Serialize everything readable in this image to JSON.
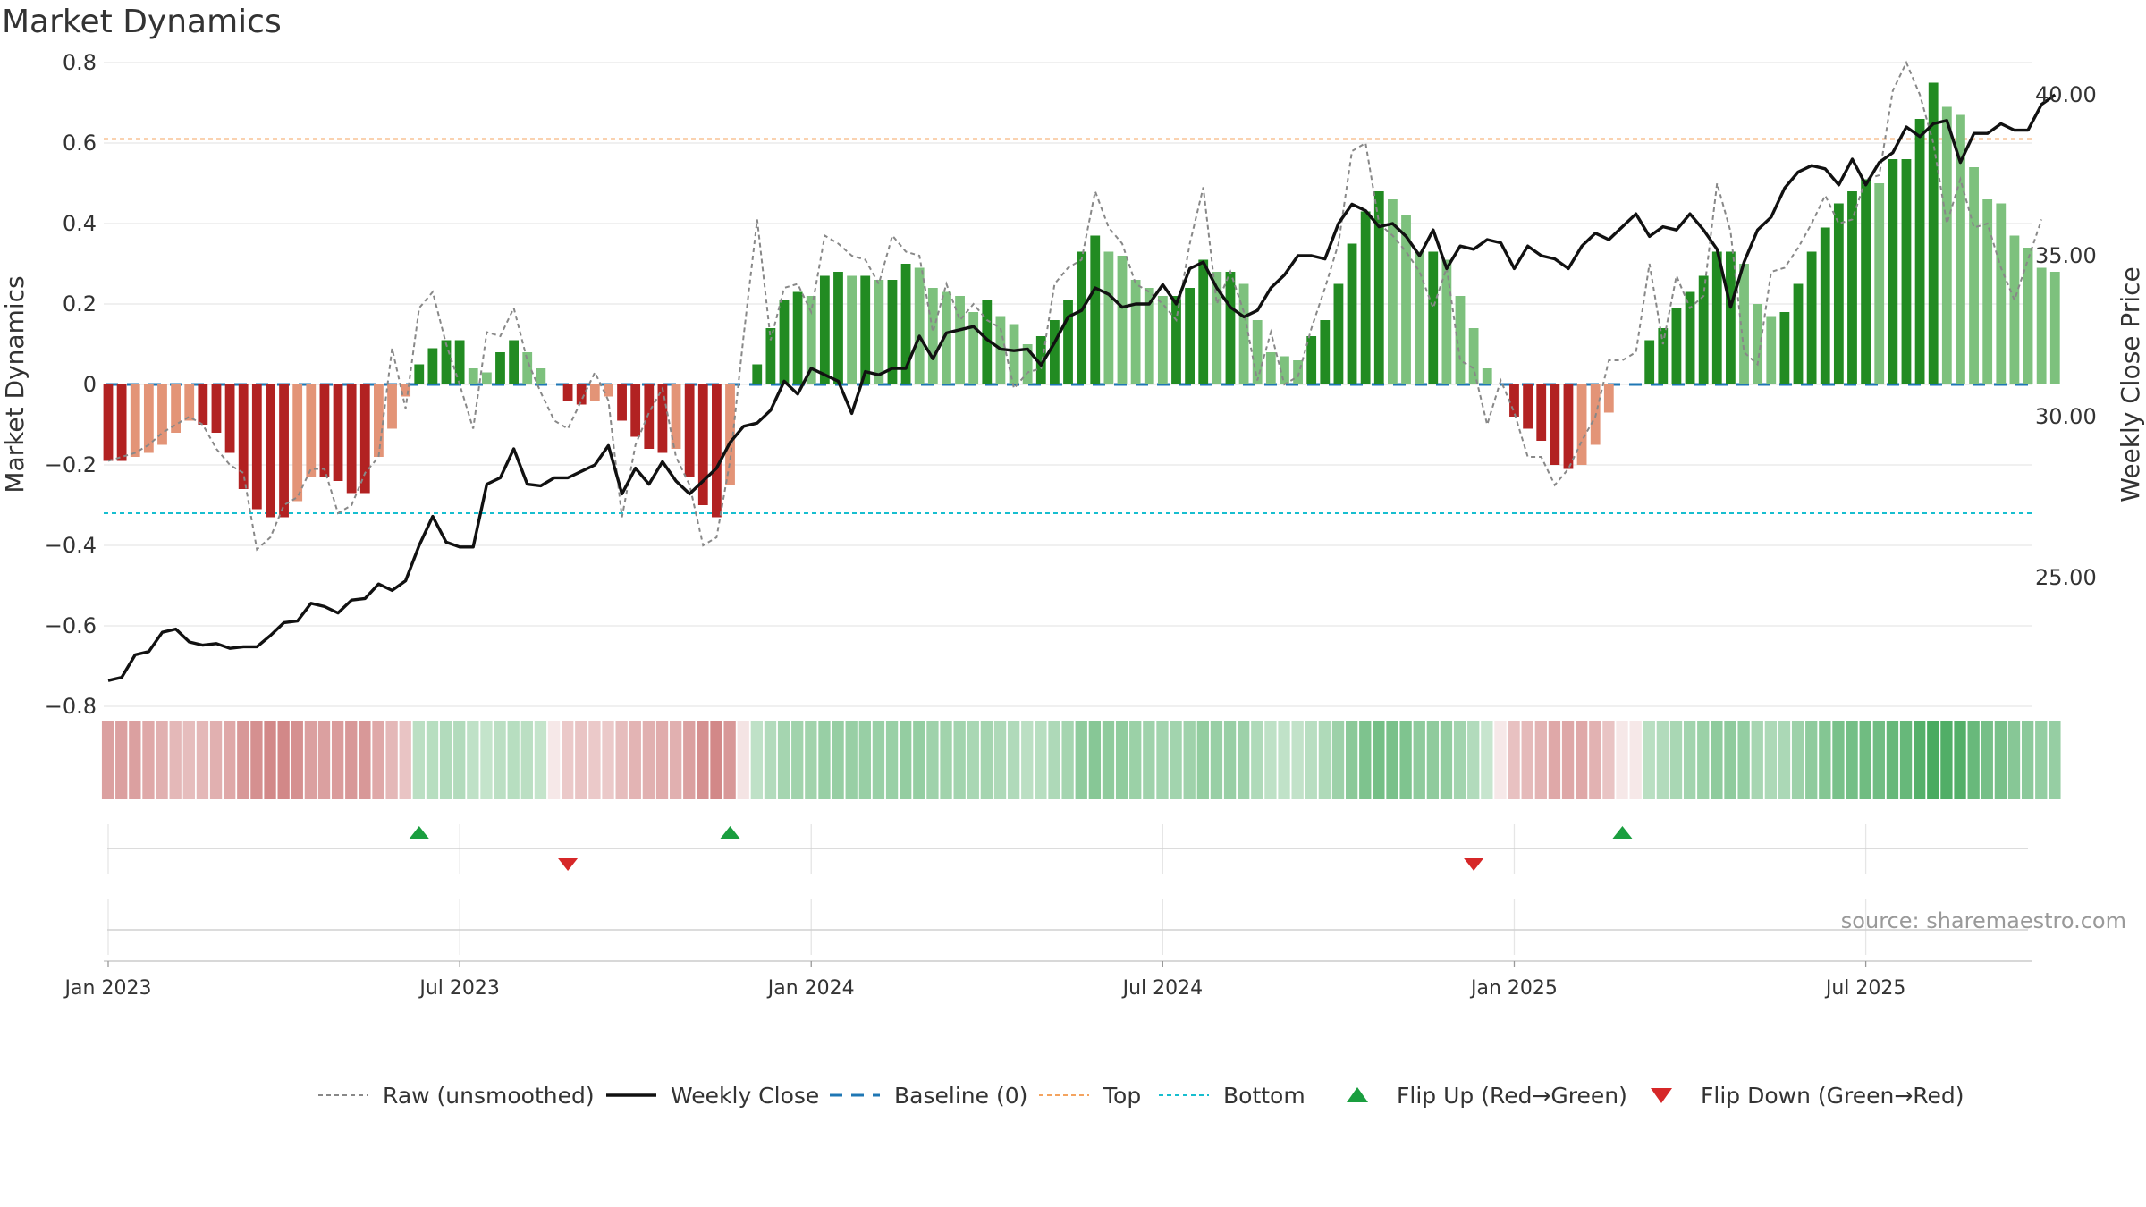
{
  "title": "Market Dynamics",
  "chart_data": {
    "type": "bar",
    "title": "Market Dynamics",
    "ylabel_left": "Market Dynamics",
    "ylabel_right": "Weekly Close Price",
    "ylim_left": [
      -0.8,
      0.8
    ],
    "yticks_left": [
      "0.8",
      "0.6",
      "0.4",
      "0.2",
      "0",
      "−0.2",
      "−0.4",
      "−0.6",
      "−0.8"
    ],
    "ylim_right": [
      21.0,
      41.0
    ],
    "yticks_right": [
      "40.00",
      "35.00",
      "30.00",
      "25.00"
    ],
    "x_start": "2023-01-02",
    "x_ticks": [
      "Jan 2023",
      "Jul 2023",
      "Jan 2024",
      "Jul 2024",
      "Jan 2025",
      "Jul 2025"
    ],
    "top_line": 0.61,
    "bottom_line": -0.32,
    "source": "source: sharemaestro.com",
    "colors": {
      "strong_green": "#228B22",
      "light_green": "#7DC17D",
      "strong_red": "#B22222",
      "light_red": "#E39477",
      "raw": "#888888",
      "close": "#111111",
      "baseline": "#1f77b4",
      "top": "#f4a460",
      "bottom": "#17becf",
      "flip_up": "#1a9e3f",
      "flip_down": "#d62728"
    },
    "dynamics": [
      -0.19,
      -0.19,
      -0.18,
      -0.17,
      -0.15,
      -0.12,
      -0.09,
      -0.1,
      -0.12,
      -0.17,
      -0.26,
      -0.31,
      -0.33,
      -0.33,
      -0.29,
      -0.23,
      -0.23,
      -0.24,
      -0.27,
      -0.27,
      -0.18,
      -0.11,
      -0.03,
      0.05,
      0.09,
      0.11,
      0.11,
      0.04,
      0.03,
      0.08,
      0.11,
      0.08,
      0.04,
      0.0,
      -0.04,
      -0.05,
      -0.04,
      -0.03,
      -0.09,
      -0.13,
      -0.16,
      -0.17,
      -0.16,
      -0.23,
      -0.3,
      -0.33,
      -0.25,
      0.0,
      0.05,
      0.14,
      0.21,
      0.23,
      0.22,
      0.27,
      0.28,
      0.27,
      0.27,
      0.26,
      0.26,
      0.3,
      0.29,
      0.24,
      0.23,
      0.22,
      0.18,
      0.21,
      0.17,
      0.15,
      0.1,
      0.12,
      0.16,
      0.21,
      0.33,
      0.37,
      0.33,
      0.32,
      0.26,
      0.24,
      0.22,
      0.22,
      0.24,
      0.31,
      0.28,
      0.28,
      0.25,
      0.16,
      0.08,
      0.07,
      0.06,
      0.12,
      0.16,
      0.25,
      0.35,
      0.43,
      0.48,
      0.46,
      0.42,
      0.33,
      0.33,
      0.31,
      0.22,
      0.14,
      0.04,
      0.0,
      -0.08,
      -0.11,
      -0.14,
      -0.2,
      -0.21,
      -0.2,
      -0.15,
      -0.07,
      0.0,
      0.0,
      0.11,
      0.14,
      0.19,
      0.23,
      0.27,
      0.33,
      0.33,
      0.3,
      0.2,
      0.17,
      0.18,
      0.25,
      0.33,
      0.39,
      0.45,
      0.48,
      0.51,
      0.5,
      0.56,
      0.56,
      0.66,
      0.75,
      0.69,
      0.67,
      0.54,
      0.46,
      0.45,
      0.37,
      0.34,
      0.29,
      0.28
    ],
    "raw": [
      -0.19,
      -0.18,
      -0.17,
      -0.15,
      -0.12,
      -0.1,
      -0.08,
      -0.1,
      -0.16,
      -0.2,
      -0.22,
      -0.41,
      -0.38,
      -0.3,
      -0.28,
      -0.21,
      -0.21,
      -0.32,
      -0.3,
      -0.22,
      -0.18,
      0.09,
      -0.06,
      0.19,
      0.23,
      0.1,
      0.0,
      -0.11,
      0.13,
      0.12,
      0.19,
      0.06,
      -0.02,
      -0.09,
      -0.11,
      -0.04,
      0.03,
      -0.04,
      -0.33,
      -0.15,
      -0.07,
      -0.01,
      -0.18,
      -0.25,
      -0.4,
      -0.38,
      -0.19,
      0.12,
      0.41,
      0.11,
      0.24,
      0.25,
      0.18,
      0.37,
      0.35,
      0.32,
      0.31,
      0.25,
      0.37,
      0.33,
      0.32,
      0.13,
      0.25,
      0.16,
      0.2,
      0.16,
      0.14,
      -0.01,
      0.03,
      0.04,
      0.25,
      0.29,
      0.31,
      0.48,
      0.39,
      0.35,
      0.25,
      0.23,
      0.2,
      0.16,
      0.35,
      0.49,
      0.2,
      0.28,
      0.18,
      0.01,
      0.13,
      0.0,
      0.02,
      0.14,
      0.24,
      0.35,
      0.58,
      0.6,
      0.4,
      0.37,
      0.33,
      0.28,
      0.19,
      0.29,
      0.06,
      0.04,
      -0.1,
      0.01,
      -0.07,
      -0.18,
      -0.18,
      -0.25,
      -0.21,
      -0.14,
      -0.08,
      0.06,
      0.06,
      0.08,
      0.3,
      0.1,
      0.27,
      0.19,
      0.22,
      0.5,
      0.38,
      0.08,
      0.05,
      0.28,
      0.29,
      0.34,
      0.4,
      0.47,
      0.4,
      0.41,
      0.51,
      0.52,
      0.73,
      0.8,
      0.72,
      0.6,
      0.4,
      0.51,
      0.39,
      0.4,
      0.29,
      0.21,
      0.31,
      0.41
    ],
    "close": [
      21.8,
      21.9,
      22.6,
      22.7,
      23.3,
      23.4,
      23.0,
      22.9,
      22.95,
      22.8,
      22.85,
      22.85,
      23.2,
      23.6,
      23.65,
      24.2,
      24.1,
      23.9,
      24.3,
      24.35,
      24.8,
      24.6,
      24.9,
      26.0,
      26.9,
      26.1,
      25.95,
      25.95,
      27.9,
      28.1,
      29.0,
      27.9,
      27.85,
      28.1,
      28.1,
      28.3,
      28.5,
      29.1,
      27.6,
      28.4,
      27.9,
      28.6,
      28.0,
      27.6,
      28.0,
      28.4,
      29.2,
      29.7,
      29.8,
      30.2,
      31.1,
      30.7,
      31.5,
      31.3,
      31.1,
      30.1,
      31.4,
      31.3,
      31.5,
      31.5,
      32.5,
      31.8,
      32.6,
      32.7,
      32.8,
      32.4,
      32.1,
      32.05,
      32.1,
      31.6,
      32.3,
      33.1,
      33.3,
      34.0,
      33.8,
      33.4,
      33.5,
      33.5,
      34.1,
      33.5,
      34.6,
      34.8,
      34.0,
      33.4,
      33.1,
      33.3,
      34.0,
      34.4,
      35.0,
      35.0,
      34.9,
      36.0,
      36.6,
      36.4,
      35.9,
      36.0,
      35.6,
      35.0,
      35.8,
      34.6,
      35.3,
      35.2,
      35.5,
      35.4,
      34.6,
      35.3,
      35.0,
      34.9,
      34.6,
      35.3,
      35.7,
      35.5,
      35.9,
      36.3,
      35.6,
      35.9,
      35.8,
      36.3,
      35.8,
      35.2,
      33.4,
      34.8,
      35.8,
      36.2,
      37.1,
      37.6,
      37.8,
      37.7,
      37.2,
      38.0,
      37.2,
      37.9,
      38.2,
      39.0,
      38.7,
      39.1,
      39.2,
      37.9,
      38.8,
      38.8,
      39.1,
      38.9,
      38.9,
      39.7,
      40.0
    ],
    "shading_intensity": [
      0.7,
      0.7,
      0.7,
      0.6,
      0.5,
      0.4,
      0.35,
      0.4,
      0.5,
      0.6,
      0.8,
      0.9,
      1.0,
      1.0,
      0.9,
      0.7,
      0.7,
      0.75,
      0.8,
      0.8,
      0.6,
      0.4,
      0.25,
      0.3,
      0.35,
      0.4,
      0.4,
      0.25,
      0.2,
      0.3,
      0.35,
      0.3,
      0.2,
      0.1,
      0.2,
      0.25,
      0.2,
      0.2,
      0.35,
      0.45,
      0.5,
      0.55,
      0.5,
      0.7,
      0.9,
      1.0,
      0.8,
      0.2,
      0.25,
      0.4,
      0.55,
      0.6,
      0.6,
      0.7,
      0.72,
      0.7,
      0.7,
      0.68,
      0.68,
      0.75,
      0.74,
      0.62,
      0.6,
      0.58,
      0.5,
      0.55,
      0.45,
      0.42,
      0.3,
      0.35,
      0.45,
      0.55,
      0.8,
      0.9,
      0.8,
      0.78,
      0.66,
      0.62,
      0.58,
      0.58,
      0.62,
      0.76,
      0.7,
      0.7,
      0.64,
      0.44,
      0.26,
      0.24,
      0.22,
      0.34,
      0.44,
      0.64,
      0.85,
      1.0,
      1.1,
      1.05,
      0.98,
      0.8,
      0.8,
      0.76,
      0.58,
      0.4,
      0.16,
      0.1,
      0.3,
      0.38,
      0.46,
      0.6,
      0.62,
      0.6,
      0.48,
      0.25,
      0.1,
      0.1,
      0.32,
      0.4,
      0.5,
      0.58,
      0.66,
      0.8,
      0.8,
      0.74,
      0.52,
      0.46,
      0.48,
      0.64,
      0.8,
      0.92,
      1.05,
      1.1,
      1.16,
      1.14,
      1.26,
      1.26,
      1.46,
      1.6,
      1.5,
      1.48,
      1.24,
      1.08,
      1.06,
      0.9,
      0.84,
      0.74,
      0.72
    ],
    "flips_up": [
      "2023-06-12",
      "2023-11-20",
      "2025-02-24"
    ],
    "flips_down": [
      "2023-08-28",
      "2024-12-09"
    ],
    "legend": [
      {
        "label": "Raw (unsmoothed)",
        "kind": "raw"
      },
      {
        "label": "Weekly Close",
        "kind": "close"
      },
      {
        "label": "Baseline (0)",
        "kind": "baseline"
      },
      {
        "label": "Top",
        "kind": "top"
      },
      {
        "label": "Bottom",
        "kind": "bottom"
      },
      {
        "label": "Flip Up (Red→Green)",
        "kind": "up"
      },
      {
        "label": "Flip Down (Green→Red)",
        "kind": "down"
      }
    ]
  }
}
